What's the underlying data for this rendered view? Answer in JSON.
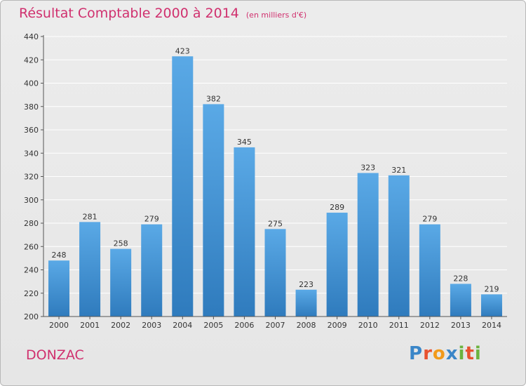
{
  "title": "Résultat Comptable 2000 à 2014",
  "subtitle": "(en milliers d'€)",
  "commune": "DONZAC",
  "logo": {
    "text": "Proxiti",
    "letters": [
      {
        "char": "P",
        "color": "#3a86c8"
      },
      {
        "char": "r",
        "color": "#e8522f"
      },
      {
        "char": "o",
        "color": "#f29a1a"
      },
      {
        "char": "x",
        "color": "#3a86c8"
      },
      {
        "char": "i",
        "color": "#6cb33f"
      },
      {
        "char": "t",
        "color": "#e8522f"
      },
      {
        "char": "i",
        "color": "#6cb33f"
      }
    ]
  },
  "colors": {
    "title": "#d0306e",
    "bar_light": "#5aa9e6",
    "bar_dark": "#2f7bbd",
    "grid": "#ffffff",
    "axis": "#555555"
  },
  "chart_data": {
    "type": "bar",
    "title": "Résultat Comptable 2000 à 2014",
    "subtitle": "(en milliers d'€)",
    "categories": [
      "2000",
      "2001",
      "2002",
      "2003",
      "2004",
      "2005",
      "2006",
      "2007",
      "2008",
      "2009",
      "2010",
      "2011",
      "2012",
      "2013",
      "2014"
    ],
    "values": [
      248,
      281,
      258,
      279,
      423,
      382,
      345,
      275,
      223,
      289,
      323,
      321,
      279,
      228,
      219
    ],
    "ylim": [
      200,
      440
    ],
    "yticks": [
      200,
      220,
      240,
      260,
      280,
      300,
      320,
      340,
      360,
      380,
      400,
      420,
      440
    ],
    "grid": true,
    "data_labels": true
  }
}
